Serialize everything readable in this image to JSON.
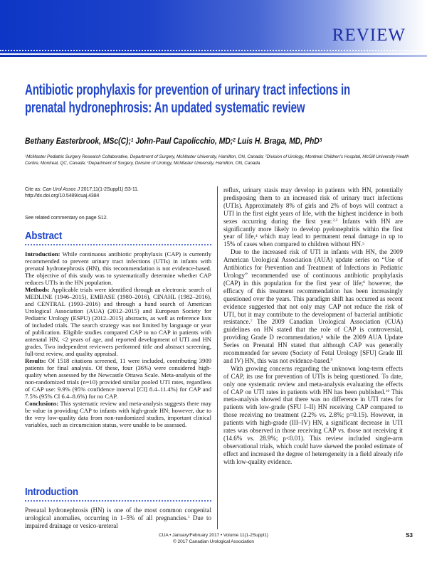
{
  "colors": {
    "accent_blue": "#2146cb",
    "banner_blue_left": "#0d36c6",
    "review_text_blue": "#1d2fa4"
  },
  "banner": {
    "label": "REVIEW"
  },
  "title": "Antibiotic prophylaxis for prevention of urinary tract infections in\nprenatal hydronephrosis: An updated systematic review",
  "authors_segments": [
    {
      "t": "Bethany Easterbrook, MSc(C);"
    },
    {
      "t": "1",
      "sup": true
    },
    {
      "t": " John-Paul Capolicchio, MD;"
    },
    {
      "t": "2",
      "sup": true
    },
    {
      "t": " Luis H. Braga, MD, PhD"
    },
    {
      "t": "3",
      "sup": true
    }
  ],
  "affiliations_segments": [
    {
      "t": "1",
      "sup": true
    },
    {
      "t": "McMaster Pediatric Surgery Research Collaborative, Department of Surgery, McMaster University, Hamilton, ON, Canada; "
    },
    {
      "t": "2",
      "sup": true
    },
    {
      "t": "Division of Urology, Montreal Children’s Hospital, McGill University Health Centre, Montreal, QC, Canada; "
    },
    {
      "t": "3",
      "sup": true
    },
    {
      "t": "Department of Surgery, Division of Urology, McMaster University, Hamilton, ON, Canada"
    }
  ],
  "cite_segments": [
    {
      "t": "Cite as: "
    },
    {
      "t": "Can Urol Assoc J",
      "i": true
    },
    {
      "t": " 2017;11(1-2Suppl1):S3-11. http://dx.doi.org/10.5489/cuaj.4384"
    }
  ],
  "commentary_note": "See related commentary on page S12.",
  "abstract": {
    "heading": "Abstract",
    "paragraphs": [
      {
        "segments": [
          {
            "t": "Introduction:",
            "b": true
          },
          {
            "t": " While continuous antibiotic prophylaxis (CAP) is currently recommended to prevent urinary tract infections (UTIs) in infants with prenatal hydronephrosis (HN), this recommendation is not evidence-based. The objective of this study was to systematically determine whether CAP reduces UTIs in the HN population."
          }
        ]
      },
      {
        "segments": [
          {
            "t": "Methods:",
            "b": true
          },
          {
            "t": " Applicable trials were identified through an electronic search of MEDLINE (1946–2015), EMBASE (1980–2016), CINAHL (1982–2016), and CENTRAL (1993–2016) and through a hand search of American Urological Association (AUA) (2012–2015) and European Society for Pediatric Urology (ESPU) (2012–2015) abstracts, as well as reference lists of included trials. The search strategy was not limited by language or year of publication. Eligible studies compared CAP to no CAP in patients with antenatal HN, <2 years of age, and reported development of UTI and HN grades. Two independent reviewers performed title and abstract screening, full-text review, and quality appraisal."
          }
        ]
      },
      {
        "segments": [
          {
            "t": "Results:",
            "b": true
          },
          {
            "t": " Of 1518 citations screened, 11 were included, contributing 3909 patients for final analysis. Of these, four (36%) were considered high-quality when assessed by the Newcastle Ottawa Scale. Meta-analysis of the non-randomized trials (n=10) provided similar pooled UTI rates, regardless of CAP use: 9.9% (95% confidence interval [CI] 8.4–11.4%) for CAP and 7.5% (95% CI 6.4–8.6%) for no CAP."
          }
        ]
      },
      {
        "segments": [
          {
            "t": "Conclusions:",
            "b": true
          },
          {
            "t": " This systematic review and meta-analysis suggests there may be value in providing CAP to infants with high-grade HN; however, due to the very low-quality data from non-randomized studies, important clinical variables, such as circumcision status, were unable to be assessed."
          }
        ]
      }
    ]
  },
  "introduction": {
    "heading": "Introduction",
    "paragraphs": [
      {
        "segments": [
          {
            "t": "Prenatal hydronephrosis (HN) is one of the most common congenital urological anomalies, occurring in 1–5% of all pregnancies."
          },
          {
            "t": "1",
            "sup": true
          },
          {
            "t": " Due to impaired drainage or vesico-ureteral"
          }
        ]
      }
    ]
  },
  "right_column": {
    "paragraphs": [
      {
        "segments": [
          {
            "t": "reflux, urinary stasis may develop in patients with HN, potentially predisposing them to an increased risk of urinary tract infections (UTIs). Approximately 8% of girls and 2% of boys will contract a UTI in the first eight years of life, with the highest incidence in both sexes occurring during the first year."
          },
          {
            "t": "2,3",
            "sup": true
          },
          {
            "t": " Infants with HN are significantly more likely to develop pyelonephritis within the first year of life,"
          },
          {
            "t": "4",
            "sup": true
          },
          {
            "t": " which may lead to permanent renal damage in up to 15% of cases when compared to children without HN."
          },
          {
            "t": "5",
            "sup": true
          }
        ]
      },
      {
        "indent": true,
        "segments": [
          {
            "t": "Due to the increased risk of UTI in infants with HN, the 2009 American Urological Association (AUA) update series on “Use of Antibiotics for Prevention and Treatment of Infections in Pediatric Urology” recommended use of continuous antibiotic prophylaxis (CAP) in this population for the first year of life;"
          },
          {
            "t": "6",
            "sup": true
          },
          {
            "t": " however, the efficacy of this treatment recommendation has been increasingly questioned over the years. This paradigm shift has occurred as recent evidence suggested that not only may CAP not reduce the risk of UTI, but it may contribute to the development of bacterial antibiotic resistance."
          },
          {
            "t": "7",
            "sup": true
          },
          {
            "t": " The 2009 Canadian Urological Association (CUA) guidelines on HN stated that the role of CAP is controversial, providing Grade D recommendation,"
          },
          {
            "t": "8",
            "sup": true
          },
          {
            "t": " while the 2009 AUA Update Series on Prenatal HN stated that although CAP was generally recommended for severe (Society of Fetal Urology [SFU] Grade III and IV) HN, this was not evidence-based."
          },
          {
            "t": "9",
            "sup": true
          }
        ]
      },
      {
        "indent": true,
        "segments": [
          {
            "t": "With growing concerns regarding the unknown long-term effects of CAP, its use for prevention of UTIs is being questioned. To date, only one systematic review and meta-analysis evaluating the effects of CAP on UTI rates in patients with HN has been published."
          },
          {
            "t": "10",
            "sup": true
          },
          {
            "t": " This meta-analysis showed that there was no difference in UTI rates for patients with low-grade (SFU I–II) HN receiving CAP compared to those receiving no treatment (2.2% vs. 2.8%; p=0.15). However, in patients with high-grade (III–IV) HN, a significant decrease in UTI rates was observed in those receiving CAP vs. those not receiving it (14.6% vs. 28.9%; p<0.01). This review included single-arm observational trials, which could have skewed the pooled estimate of effect and increased the degree of heterogeneity in a field already rife with low-quality evidence."
          }
        ]
      }
    ]
  },
  "footer": {
    "line1": "CUA • January/February 2017 • Volume 11(1-2Suppl1)",
    "line2": "© 2017 Canadian Urological Association",
    "page_number": "S3"
  }
}
